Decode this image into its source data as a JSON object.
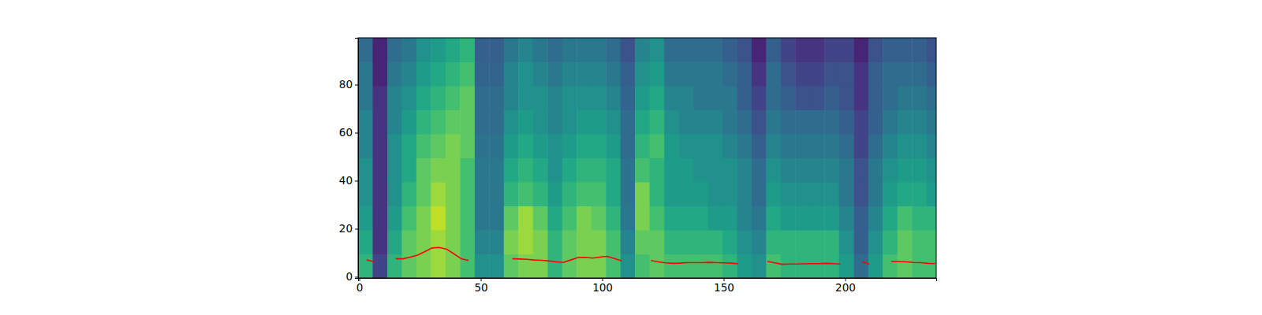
{
  "chart_data": {
    "type": "heatmap",
    "xlim": [
      -0.5,
      237.5
    ],
    "ylim": [
      -0.5,
      99.5
    ],
    "xticks": [
      0,
      50,
      100,
      150,
      200
    ],
    "yticks": [
      0,
      20,
      40,
      60,
      80
    ],
    "zlim": [
      0,
      10
    ],
    "cell_x": [
      -0.5,
      5.5,
      11.5,
      17.5,
      23.5,
      29.5,
      35.5,
      41.5,
      47.5,
      53.5,
      59.5,
      65.5,
      71.5,
      77.5,
      83.5,
      89.5,
      95.5,
      101.5,
      107.5,
      113.5,
      119.5,
      125.5,
      131.5,
      137.5,
      143.5,
      149.5,
      155.5,
      161.5,
      167.5,
      173.5,
      179.5,
      185.5,
      191.5,
      197.5,
      203.5,
      209.5,
      215.5,
      221.5,
      227.5,
      233.5,
      239.5
    ],
    "cell_y": [
      -0.5,
      9.5,
      19.5,
      29.5,
      39.5,
      49.5,
      59.5,
      69.5,
      79.5,
      89.5,
      99.5
    ],
    "cells": [
      [
        6.5,
        2,
        6.5,
        7.5,
        8,
        8.5,
        8,
        7,
        5,
        5,
        7.5,
        8,
        8,
        6.5,
        7.5,
        8,
        8,
        7,
        5,
        7,
        7.5,
        7,
        7,
        7,
        7,
        6.5,
        5.5,
        5,
        7,
        6.5,
        6.5,
        6.5,
        6.5,
        5.5,
        3.5,
        5.5,
        7,
        7.5,
        7,
        7
      ],
      [
        6,
        1.5,
        6,
        7.5,
        8,
        8.5,
        8,
        7,
        4.5,
        4.5,
        8,
        8.5,
        8,
        6.5,
        7.5,
        8,
        8,
        7,
        4.5,
        7.5,
        7.5,
        6.5,
        6.5,
        6.5,
        6.5,
        6,
        5,
        4.5,
        6.5,
        6.5,
        6.5,
        6.5,
        6.5,
        5,
        3,
        5,
        6.5,
        7.5,
        7,
        7
      ],
      [
        5.5,
        1.5,
        5.5,
        7,
        8,
        9,
        8,
        7,
        4,
        4,
        7.5,
        8.5,
        7.5,
        6,
        7,
        8,
        7.5,
        6.5,
        4,
        8,
        7,
        6,
        6,
        6,
        5.5,
        5.5,
        4.5,
        4,
        6,
        5.5,
        5.5,
        5.5,
        5.5,
        4.5,
        3,
        4.5,
        6,
        7,
        6.5,
        6.5
      ],
      [
        5,
        1.5,
        5,
        6.5,
        7.5,
        8.5,
        8,
        7,
        4,
        4,
        6.5,
        7,
        6.5,
        5.5,
        6.5,
        7,
        7,
        6,
        3.8,
        8,
        6.5,
        5.5,
        5.5,
        5.5,
        5,
        5,
        4.5,
        3.5,
        5.5,
        5,
        5,
        5,
        5,
        4,
        2.5,
        4,
        5.5,
        6,
        6,
        5.5
      ],
      [
        5,
        1.5,
        5,
        6,
        7.5,
        8,
        8,
        7,
        4,
        4,
        6,
        6.5,
        6,
        5,
        6,
        6.5,
        6.5,
        6,
        3.8,
        7,
        6.5,
        5.5,
        5.5,
        5,
        5,
        5,
        4.5,
        3.5,
        5,
        4.5,
        4.5,
        4.5,
        4.5,
        4,
        2.5,
        4,
        5,
        5.5,
        5.5,
        5
      ],
      [
        4.5,
        1.5,
        5,
        6,
        7,
        7.5,
        8,
        7.5,
        3.8,
        3.8,
        5.5,
        6,
        5.5,
        5,
        5.5,
        6,
        6,
        5.5,
        3.5,
        6.5,
        7,
        5.5,
        5,
        5,
        5,
        4.5,
        4,
        3,
        4.5,
        4,
        4,
        4,
        4,
        3.5,
        2,
        3.5,
        4.5,
        5,
        5,
        4.5
      ],
      [
        4.5,
        1.5,
        4.5,
        5.5,
        6.5,
        7,
        7.5,
        7.5,
        3.5,
        3.5,
        5,
        5.5,
        5,
        4.5,
        5,
        5.5,
        5.5,
        5,
        3.5,
        6,
        6.5,
        5,
        4.5,
        4.5,
        4.5,
        4,
        3.5,
        2.5,
        4,
        3.5,
        3.5,
        3.5,
        3.5,
        3,
        2,
        3,
        4,
        4.5,
        4.5,
        4
      ],
      [
        4,
        1.5,
        4.5,
        5,
        6,
        6.5,
        7,
        7.5,
        3.5,
        3.5,
        4.5,
        5,
        5,
        4.5,
        5,
        5,
        5,
        4.5,
        3.2,
        5.5,
        6,
        4.5,
        4.5,
        4,
        4,
        4,
        3,
        2,
        3.5,
        3,
        2.5,
        2.5,
        3,
        2.5,
        1.5,
        3,
        3.5,
        4,
        4,
        3.5
      ],
      [
        4,
        1,
        4,
        4.5,
        5.5,
        6,
        6.5,
        7,
        3.2,
        3.2,
        4.5,
        5,
        4.5,
        4,
        4.5,
        4.5,
        4.5,
        4,
        3,
        5,
        5.5,
        4,
        4,
        4,
        4,
        3.5,
        3,
        1.5,
        3.5,
        2.5,
        2,
        2,
        2.5,
        2.5,
        1.5,
        3,
        3.5,
        3.5,
        3.5,
        3
      ],
      [
        3.5,
        1,
        3.5,
        4,
        5,
        5.5,
        6,
        6.5,
        3,
        3,
        4,
        4.5,
        4,
        3.5,
        4,
        4,
        4,
        3.5,
        2.5,
        4.5,
        5,
        3.5,
        3.5,
        3.5,
        3.5,
        3,
        2.5,
        1,
        3,
        2,
        1.5,
        1.5,
        2,
        2,
        1,
        2.5,
        3,
        3,
        3,
        2.5
      ]
    ],
    "series": [
      {
        "type": "line",
        "color": "#ff0000",
        "x": [
          0,
          3,
          6,
          9,
          12,
          15,
          18,
          21,
          24,
          27,
          30,
          33,
          36,
          39,
          42,
          45,
          48,
          51,
          54,
          57,
          60,
          63,
          66,
          69,
          72,
          75,
          78,
          81,
          84,
          87,
          90,
          93,
          96,
          99,
          102,
          105,
          108,
          111,
          114,
          117,
          120,
          123,
          126,
          129,
          132,
          135,
          138,
          141,
          144,
          147,
          150,
          153,
          156,
          159,
          162,
          165,
          168,
          171,
          174,
          177,
          180,
          183,
          186,
          189,
          192,
          195,
          198,
          201,
          204,
          207,
          210,
          213,
          216,
          219,
          222,
          225,
          228,
          231,
          234,
          237
        ],
        "values": [
          null,
          7,
          6.3,
          null,
          null,
          7.5,
          7.5,
          8.2,
          9,
          10.5,
          12,
          12.2,
          11.5,
          9.5,
          7.5,
          6.8,
          null,
          null,
          null,
          null,
          null,
          7.5,
          7.4,
          7.3,
          7,
          6.9,
          6.6,
          6.2,
          6,
          7,
          8,
          8.1,
          7.8,
          8.2,
          8.5,
          7.6,
          6.6,
          null,
          null,
          null,
          6.8,
          6.2,
          5.8,
          5.6,
          5.7,
          5.9,
          5.9,
          5.9,
          6,
          5.9,
          5.8,
          5.7,
          5.4,
          null,
          null,
          null,
          6.4,
          5.8,
          5.2,
          5.3,
          5.3,
          5.4,
          5.5,
          5.5,
          5.6,
          5.5,
          5.3,
          null,
          null,
          6.4,
          5.2,
          null,
          null,
          6.3,
          6.3,
          6.2,
          6,
          5.9,
          5.6,
          5.5
        ]
      }
    ]
  }
}
